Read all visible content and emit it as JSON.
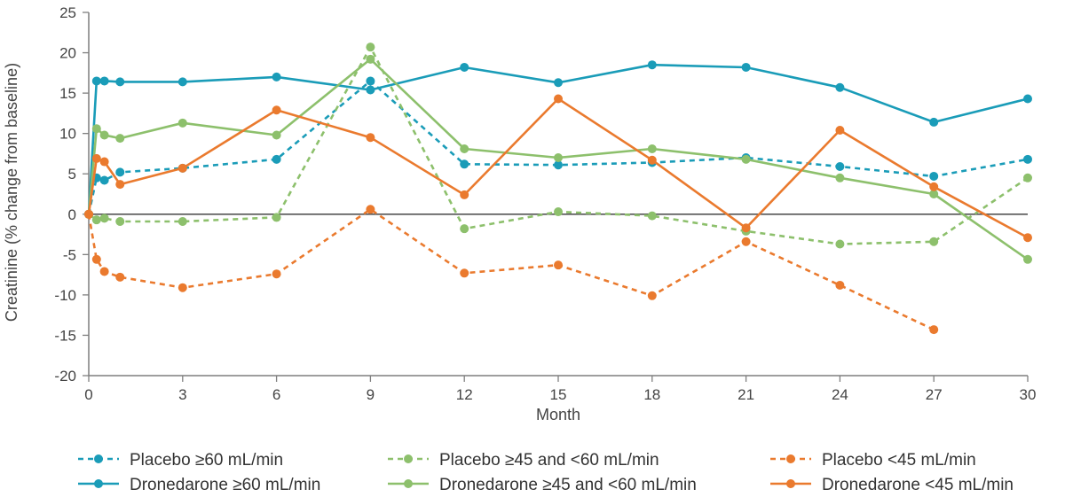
{
  "chart_data": {
    "type": "line",
    "title": "",
    "xlabel": "Month",
    "ylabel": "Creatinine (% change from baseline)",
    "xlim": [
      0,
      30
    ],
    "ylim": [
      -20,
      25
    ],
    "x_ticks": [
      0,
      3,
      6,
      9,
      12,
      15,
      18,
      21,
      24,
      27,
      30
    ],
    "y_ticks": [
      -20,
      -15,
      -10,
      -5,
      0,
      5,
      10,
      15,
      20,
      25
    ],
    "grid": false,
    "legend_position": "bottom",
    "colors": {
      "ge60": "#1a9cb8",
      "mid": "#8dc06c",
      "lt45": "#ea7a2e",
      "zeroline": "#555555",
      "axis": "#7f7f7f"
    },
    "series": [
      {
        "name": "Placebo ≥60 mL/min",
        "color": "#1a9cb8",
        "dash": "dashed",
        "x": [
          0,
          0.25,
          0.5,
          1,
          3,
          6,
          9,
          12,
          15,
          18,
          21,
          24,
          27,
          30
        ],
        "y": [
          0,
          4.5,
          4.2,
          5.2,
          5.7,
          6.8,
          16.5,
          6.2,
          6.1,
          6.4,
          7.0,
          5.9,
          4.7,
          6.8
        ]
      },
      {
        "name": "Dronedarone ≥60 mL/min",
        "color": "#1a9cb8",
        "dash": "solid",
        "x": [
          0,
          0.25,
          0.5,
          1,
          3,
          6,
          9,
          12,
          15,
          18,
          21,
          24,
          27,
          30
        ],
        "y": [
          0,
          16.5,
          16.5,
          16.4,
          16.4,
          17.0,
          15.4,
          18.2,
          16.3,
          18.5,
          18.2,
          15.7,
          11.4,
          14.3
        ]
      },
      {
        "name": "Placebo ≥45 and <60 mL/min",
        "color": "#8dc06c",
        "dash": "dashed",
        "x": [
          0,
          0.25,
          0.5,
          1,
          3,
          6,
          9,
          12,
          15,
          18,
          21,
          24,
          27,
          30
        ],
        "y": [
          0,
          -0.7,
          -0.5,
          -0.9,
          -0.9,
          -0.4,
          20.7,
          -1.8,
          0.3,
          -0.2,
          -2.1,
          -3.7,
          -3.4,
          4.5
        ]
      },
      {
        "name": "Dronedarone ≥45 and <60 mL/min",
        "color": "#8dc06c",
        "dash": "solid",
        "x": [
          0,
          0.25,
          0.5,
          1,
          3,
          6,
          9,
          12,
          15,
          18,
          21,
          24,
          27,
          30
        ],
        "y": [
          0,
          10.6,
          9.8,
          9.4,
          11.3,
          9.8,
          19.2,
          8.1,
          7.0,
          8.1,
          6.8,
          4.5,
          2.5,
          -5.6
        ]
      },
      {
        "name": "Placebo <45 mL/min",
        "color": "#ea7a2e",
        "dash": "dashed",
        "x": [
          0,
          0.25,
          0.5,
          1,
          3,
          6,
          9,
          12,
          15,
          18,
          21,
          24,
          27
        ],
        "y": [
          0,
          -5.6,
          -7.1,
          -7.8,
          -9.1,
          -7.4,
          0.6,
          -7.3,
          -6.3,
          -10.1,
          -3.4,
          -8.8,
          -14.3
        ]
      },
      {
        "name": "Dronedarone <45 mL/min",
        "color": "#ea7a2e",
        "dash": "solid",
        "x": [
          0,
          0.25,
          0.5,
          1,
          3,
          6,
          9,
          12,
          15,
          18,
          21,
          24,
          27,
          30
        ],
        "y": [
          0,
          6.9,
          6.5,
          3.7,
          5.7,
          12.9,
          9.5,
          2.4,
          14.3,
          6.7,
          -1.7,
          10.4,
          3.4,
          -2.9
        ]
      }
    ],
    "legend_order": [
      0,
      2,
      4,
      1,
      3,
      5
    ]
  }
}
